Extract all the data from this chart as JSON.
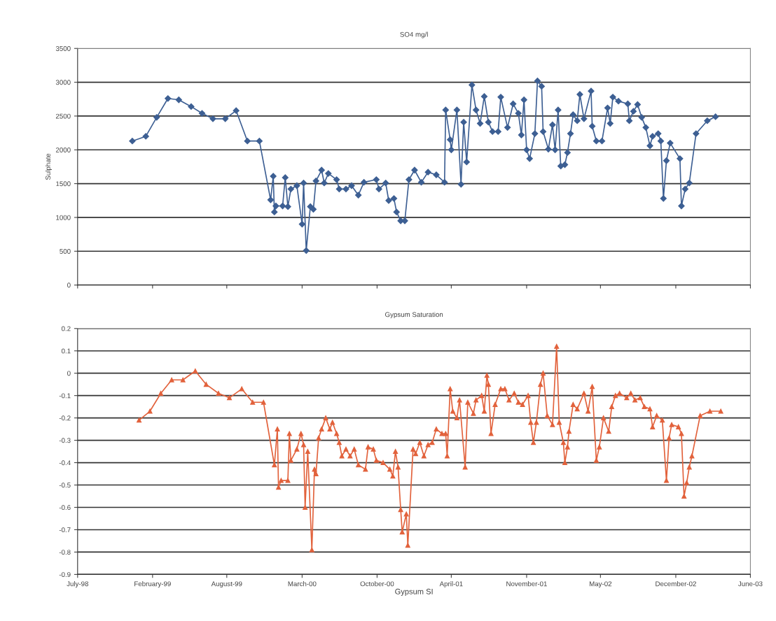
{
  "chart_data": [
    {
      "type": "line",
      "title": "SO4 mg/l",
      "ylabel": "Sulphate",
      "x": [
        "1998-12-21",
        "1999-01-26",
        "1999-02-24",
        "1999-03-26",
        "1999-04-24",
        "1999-05-27",
        "1999-06-25",
        "1999-07-24",
        "1999-08-26",
        "1999-09-24",
        "1999-10-24",
        "1999-11-25",
        "1999-12-25",
        "2000-01-01",
        "2000-01-04",
        "2000-01-08",
        "2000-01-26",
        "2000-02-02",
        "2000-02-09",
        "2000-02-17",
        "2000-03-04",
        "2000-03-18",
        "2000-03-22",
        "2000-03-29",
        "2000-04-09",
        "2000-04-17",
        "2000-04-24",
        "2000-05-09",
        "2000-05-16",
        "2000-05-27",
        "2000-06-18",
        "2000-06-25",
        "2000-07-13",
        "2000-07-28",
        "2000-08-15",
        "2000-08-30",
        "2000-10-02",
        "2000-10-09",
        "2000-10-27",
        "2000-11-04",
        "2000-11-18",
        "2000-11-25",
        "2000-12-06",
        "2000-12-17",
        "2000-12-28",
        "2001-01-12",
        "2001-01-30",
        "2001-02-17",
        "2001-03-11",
        "2001-04-02",
        "2001-04-05",
        "2001-04-17",
        "2001-04-20",
        "2001-05-05",
        "2001-05-16",
        "2001-05-23",
        "2001-05-31",
        "2001-06-14",
        "2001-06-25",
        "2001-07-06",
        "2001-07-17",
        "2001-07-28",
        "2001-08-08",
        "2001-08-23",
        "2001-08-30",
        "2001-09-17",
        "2001-10-02",
        "2001-10-16",
        "2001-10-24",
        "2001-10-31",
        "2001-11-07",
        "2001-11-15",
        "2001-11-29",
        "2001-12-06",
        "2001-12-17",
        "2001-12-21",
        "2002-01-04",
        "2002-01-15",
        "2002-01-22",
        "2002-01-30",
        "2002-02-06",
        "2002-02-17",
        "2002-02-24",
        "2002-03-04",
        "2002-03-11",
        "2002-03-22",
        "2002-03-29",
        "2002-04-09",
        "2002-04-28",
        "2002-05-01",
        "2002-05-12",
        "2002-05-27",
        "2002-06-11",
        "2002-06-18",
        "2002-06-25",
        "2002-07-10",
        "2002-08-04",
        "2002-08-08",
        "2002-08-19",
        "2002-08-30",
        "2002-09-10",
        "2002-09-21",
        "2002-10-02",
        "2002-10-09",
        "2002-10-24",
        "2002-10-31",
        "2002-11-07",
        "2002-11-15",
        "2002-11-25",
        "2002-12-21",
        "2002-12-25",
        "2003-01-04",
        "2003-01-15",
        "2003-02-02",
        "2003-03-04",
        "2003-03-26"
      ],
      "series": [
        {
          "color": "#3d5f93",
          "values": [
            2130,
            2200,
            2480,
            2760,
            2740,
            2640,
            2540,
            2460,
            2460,
            2580,
            2130,
            2130,
            1260,
            1610,
            1080,
            1170,
            1170,
            1590,
            1160,
            1420,
            1470,
            900,
            1510,
            510,
            1160,
            1120,
            1540,
            1700,
            1510,
            1650,
            1560,
            1420,
            1420,
            1470,
            1330,
            1520,
            1560,
            1420,
            1510,
            1250,
            1280,
            1080,
            950,
            950,
            1560,
            1700,
            1520,
            1670,
            1630,
            1520,
            2590,
            2150,
            2000,
            2590,
            1490,
            2410,
            1820,
            2960,
            2590,
            2390,
            2790,
            2410,
            2270,
            2270,
            2780,
            2330,
            2680,
            2540,
            2220,
            2740,
            2000,
            1870,
            2240,
            3020,
            2940,
            2270,
            2010,
            2370,
            2000,
            2590,
            1760,
            1780,
            1960,
            2240,
            2520,
            2430,
            2820,
            2460,
            2870,
            2350,
            2130,
            2130,
            2620,
            2390,
            2780,
            2720,
            2680,
            2430,
            2570,
            2670,
            2480,
            2330,
            2060,
            2200,
            2240,
            2130,
            1280,
            1840,
            2100,
            1870,
            1170,
            1420,
            1510,
            2240,
            2430,
            2490
          ]
        }
      ],
      "xlim": [
        "1998-07-28",
        "2003-06-27"
      ],
      "xticks": [
        {
          "value": "1998-07-28",
          "label": null
        },
        {
          "value": "1999-02-13",
          "label": null
        },
        {
          "value": "1999-08-30",
          "label": null
        },
        {
          "value": "2000-03-18",
          "label": null
        },
        {
          "value": "2000-10-04",
          "label": null
        },
        {
          "value": "2001-04-20",
          "label": null
        },
        {
          "value": "2001-11-07",
          "label": null
        },
        {
          "value": "2002-05-23",
          "label": null
        },
        {
          "value": "2002-12-10",
          "label": null
        },
        {
          "value": "2003-06-27",
          "label": null
        }
      ],
      "ylim": [
        0,
        3500
      ],
      "yticks": [
        0,
        500,
        1000,
        1500,
        2000,
        2500,
        3000,
        3500
      ],
      "tick_labels": "y",
      "grid": "y",
      "marker": "diamond",
      "line_style": "solid",
      "legend": false
    },
    {
      "type": "line",
      "title": "Gypsum Saturation",
      "xlabel": "Gypsum SI",
      "x": [
        "1999-01-08",
        "1999-02-06",
        "1999-03-07",
        "1999-04-05",
        "1999-05-05",
        "1999-06-07",
        "1999-07-06",
        "1999-08-08",
        "1999-09-06",
        "1999-10-09",
        "1999-11-07",
        "1999-12-06",
        "2000-01-04",
        "2000-01-12",
        "2000-01-15",
        "2000-01-22",
        "2000-02-09",
        "2000-02-13",
        "2000-02-17",
        "2000-03-04",
        "2000-03-15",
        "2000-03-22",
        "2000-03-26",
        "2000-04-02",
        "2000-04-13",
        "2000-04-20",
        "2000-04-24",
        "2000-05-01",
        "2000-05-09",
        "2000-05-20",
        "2000-05-31",
        "2000-06-07",
        "2000-06-18",
        "2000-06-25",
        "2000-07-02",
        "2000-07-13",
        "2000-07-24",
        "2000-08-04",
        "2000-08-15",
        "2000-09-03",
        "2000-09-10",
        "2000-09-24",
        "2000-10-02",
        "2000-10-20",
        "2000-11-07",
        "2000-11-15",
        "2000-11-22",
        "2000-11-29",
        "2000-12-06",
        "2000-12-10",
        "2000-12-21",
        "2000-12-25",
        "2001-01-08",
        "2001-01-15",
        "2001-01-26",
        "2001-02-06",
        "2001-02-17",
        "2001-02-28",
        "2001-03-11",
        "2001-03-26",
        "2001-04-05",
        "2001-04-09",
        "2001-04-17",
        "2001-04-24",
        "2001-05-05",
        "2001-05-12",
        "2001-05-27",
        "2001-06-03",
        "2001-06-18",
        "2001-06-25",
        "2001-07-10",
        "2001-07-17",
        "2001-07-24",
        "2001-07-28",
        "2001-08-04",
        "2001-08-15",
        "2001-08-30",
        "2001-09-10",
        "2001-09-21",
        "2001-10-05",
        "2001-10-16",
        "2001-10-27",
        "2001-11-11",
        "2001-11-18",
        "2001-11-25",
        "2001-12-03",
        "2001-12-14",
        "2001-12-21",
        "2002-01-01",
        "2002-01-15",
        "2002-01-26",
        "2002-02-02",
        "2002-02-13",
        "2002-02-17",
        "2002-02-24",
        "2002-02-28",
        "2002-03-11",
        "2002-03-22",
        "2002-04-09",
        "2002-04-20",
        "2002-05-01",
        "2002-05-12",
        "2002-05-20",
        "2002-05-31",
        "2002-06-14",
        "2002-06-22",
        "2002-07-02",
        "2002-07-13",
        "2002-08-01",
        "2002-08-12",
        "2002-08-23",
        "2002-09-06",
        "2002-09-17",
        "2002-10-02",
        "2002-10-09",
        "2002-10-20",
        "2002-11-04",
        "2002-11-15",
        "2002-11-22",
        "2002-11-29",
        "2002-12-17",
        "2002-12-25",
        "2003-01-01",
        "2003-01-08",
        "2003-01-15",
        "2003-01-22",
        "2003-02-13",
        "2003-03-11",
        "2003-04-09"
      ],
      "series": [
        {
          "color": "#e2623c",
          "values": [
            -0.21,
            -0.17,
            -0.09,
            -0.03,
            -0.03,
            0.01,
            -0.05,
            -0.09,
            -0.11,
            -0.07,
            -0.13,
            -0.13,
            -0.41,
            -0.25,
            -0.51,
            -0.48,
            -0.48,
            -0.27,
            -0.39,
            -0.34,
            -0.27,
            -0.32,
            -0.6,
            -0.35,
            -0.79,
            -0.43,
            -0.45,
            -0.29,
            -0.25,
            -0.2,
            -0.25,
            -0.22,
            -0.27,
            -0.31,
            -0.37,
            -0.34,
            -0.37,
            -0.34,
            -0.41,
            -0.43,
            -0.33,
            -0.34,
            -0.39,
            -0.4,
            -0.43,
            -0.46,
            -0.35,
            -0.42,
            -0.61,
            -0.71,
            -0.63,
            -0.77,
            -0.34,
            -0.36,
            -0.31,
            -0.37,
            -0.32,
            -0.31,
            -0.25,
            -0.27,
            -0.27,
            -0.37,
            -0.07,
            -0.17,
            -0.2,
            -0.12,
            -0.42,
            -0.13,
            -0.18,
            -0.12,
            -0.1,
            -0.17,
            -0.01,
            -0.05,
            -0.27,
            -0.14,
            -0.07,
            -0.07,
            -0.12,
            -0.09,
            -0.13,
            -0.14,
            -0.1,
            -0.22,
            -0.31,
            -0.22,
            -0.05,
            0.0,
            -0.19,
            -0.23,
            0.12,
            -0.22,
            -0.31,
            -0.4,
            -0.33,
            -0.26,
            -0.14,
            -0.16,
            -0.09,
            -0.17,
            -0.06,
            -0.39,
            -0.33,
            -0.2,
            -0.26,
            -0.15,
            -0.1,
            -0.09,
            -0.11,
            -0.09,
            -0.12,
            -0.11,
            -0.15,
            -0.16,
            -0.24,
            -0.19,
            -0.21,
            -0.48,
            -0.29,
            -0.23,
            -0.24,
            -0.27,
            -0.55,
            -0.49,
            -0.42,
            -0.37,
            -0.19,
            -0.17,
            -0.17
          ]
        }
      ],
      "xlim": [
        "1998-07-28",
        "2003-06-27"
      ],
      "xticks": [
        {
          "value": "1998-07-28",
          "label": "July-98"
        },
        {
          "value": "1999-02-13",
          "label": "February-99"
        },
        {
          "value": "1999-08-30",
          "label": "August-99"
        },
        {
          "value": "2000-03-18",
          "label": "March-00"
        },
        {
          "value": "2000-10-04",
          "label": "October-00"
        },
        {
          "value": "2001-04-20",
          "label": "April-01"
        },
        {
          "value": "2001-11-07",
          "label": "November-01"
        },
        {
          "value": "2002-05-23",
          "label": "May-02"
        },
        {
          "value": "2002-12-10",
          "label": "December-02"
        },
        {
          "value": "2003-06-27",
          "label": "June-03"
        }
      ],
      "ylim": [
        -0.9,
        0.2
      ],
      "yticks": [
        0.2,
        0.1,
        0,
        -0.1,
        -0.2,
        -0.3,
        -0.4,
        -0.5,
        -0.6,
        -0.7,
        -0.8,
        -0.9
      ],
      "grid": "y",
      "marker": "triangle",
      "line_style": "solid",
      "legend": false
    }
  ]
}
